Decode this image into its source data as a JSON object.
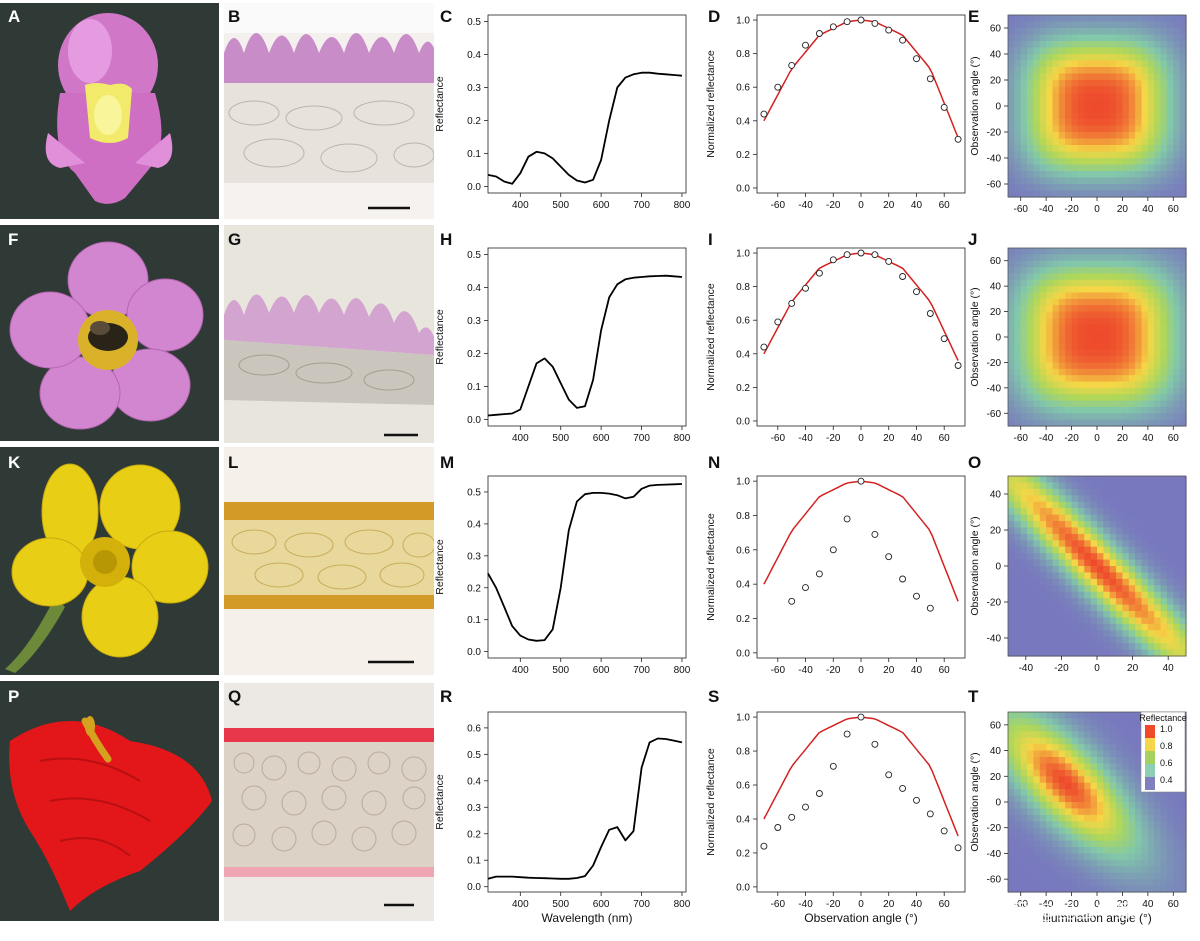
{
  "figure": {
    "row_letters": [
      [
        "A",
        "B",
        "C",
        "D",
        "E"
      ],
      [
        "F",
        "G",
        "H",
        "I",
        "J"
      ],
      [
        "K",
        "L",
        "M",
        "N",
        "O"
      ],
      [
        "P",
        "Q",
        "R",
        "S",
        "T"
      ]
    ],
    "watermark": "知乎 @昆虫学家",
    "colors": {
      "photo_background": "#2f3a36",
      "fit_curve": "#d42020",
      "spectrum_line": "#000000",
      "heat_low": "#8080c0",
      "heat_mid": "#a8d060",
      "heat_high": "#ef5030"
    },
    "icons": {
      "A": "snapdragon-flower-photo",
      "F": "cosmos-flower-with-bee-photo",
      "K": "buttercup-flower-photo",
      "P": "anthurium-spathe-photo",
      "B": "epidermis-cross-section-micrograph",
      "G": "epidermis-cross-section-micrograph",
      "L": "petal-cross-section-micrograph",
      "Q": "spathe-cross-section-micrograph"
    }
  },
  "chart_data": [
    {
      "panel": "C",
      "type": "line",
      "xlabel": "",
      "ylabel": "Reflectance",
      "xlim": [
        320,
        810
      ],
      "ylim": [
        -0.02,
        0.52
      ],
      "xticks": [
        400,
        500,
        600,
        700,
        800
      ],
      "yticks": [
        0.0,
        0.1,
        0.2,
        0.3,
        0.4,
        0.5
      ],
      "x": [
        320,
        340,
        360,
        380,
        400,
        420,
        440,
        460,
        480,
        500,
        520,
        540,
        560,
        580,
        600,
        620,
        640,
        660,
        680,
        700,
        720,
        740,
        760,
        780,
        800
      ],
      "y": [
        0.035,
        0.03,
        0.015,
        0.008,
        0.04,
        0.09,
        0.105,
        0.1,
        0.085,
        0.06,
        0.035,
        0.018,
        0.012,
        0.02,
        0.08,
        0.2,
        0.3,
        0.33,
        0.34,
        0.345,
        0.345,
        0.342,
        0.34,
        0.338,
        0.336
      ]
    },
    {
      "panel": "D",
      "type": "scatter",
      "xlabel": "",
      "ylabel": "Normalized reflectance",
      "xlim": [
        -75,
        75
      ],
      "ylim": [
        -0.03,
        1.03
      ],
      "xticks": [
        -60,
        -40,
        -20,
        0,
        20,
        40,
        60
      ],
      "yticks": [
        0.0,
        0.2,
        0.4,
        0.6,
        0.8,
        1.0
      ],
      "x": [
        -70,
        -60,
        -50,
        -40,
        -30,
        -20,
        -10,
        0,
        10,
        20,
        30,
        40,
        50,
        60,
        70
      ],
      "y": [
        0.44,
        0.6,
        0.73,
        0.85,
        0.92,
        0.96,
        0.99,
        1.0,
        0.98,
        0.94,
        0.88,
        0.77,
        0.65,
        0.48,
        0.29
      ],
      "fit": {
        "x": [
          -70,
          -50,
          -30,
          -10,
          0,
          10,
          30,
          50,
          70
        ],
        "y": [
          0.4,
          0.71,
          0.91,
          0.99,
          1.0,
          0.99,
          0.91,
          0.71,
          0.3
        ]
      }
    },
    {
      "panel": "E",
      "type": "heatmap",
      "xlabel": "",
      "ylabel": "Observation angle (°)",
      "xlim": [
        -70,
        70
      ],
      "ylim": [
        -70,
        70
      ],
      "xticks": [
        -60,
        -40,
        -20,
        0,
        20,
        40,
        60
      ],
      "yticks": [
        -60,
        -40,
        -20,
        0,
        20,
        40,
        60
      ],
      "pattern": "centered",
      "spread_x": 55,
      "spread_y": 50
    },
    {
      "panel": "H",
      "type": "line",
      "xlabel": "",
      "ylabel": "Reflectance",
      "xlim": [
        320,
        810
      ],
      "ylim": [
        -0.02,
        0.52
      ],
      "xticks": [
        400,
        500,
        600,
        700,
        800
      ],
      "yticks": [
        0.0,
        0.1,
        0.2,
        0.3,
        0.4,
        0.5
      ],
      "x": [
        320,
        340,
        360,
        380,
        400,
        420,
        440,
        460,
        480,
        500,
        520,
        540,
        560,
        580,
        600,
        620,
        640,
        660,
        680,
        700,
        720,
        740,
        760,
        780,
        800
      ],
      "y": [
        0.012,
        0.014,
        0.016,
        0.018,
        0.03,
        0.1,
        0.17,
        0.185,
        0.16,
        0.11,
        0.06,
        0.035,
        0.04,
        0.12,
        0.27,
        0.37,
        0.41,
        0.425,
        0.43,
        0.432,
        0.434,
        0.435,
        0.436,
        0.434,
        0.432
      ]
    },
    {
      "panel": "I",
      "type": "scatter",
      "xlabel": "",
      "ylabel": "Normalized reflectance",
      "xlim": [
        -75,
        75
      ],
      "ylim": [
        -0.03,
        1.03
      ],
      "xticks": [
        -60,
        -40,
        -20,
        0,
        20,
        40,
        60
      ],
      "yticks": [
        0.0,
        0.2,
        0.4,
        0.6,
        0.8,
        1.0
      ],
      "x": [
        -70,
        -60,
        -50,
        -40,
        -30,
        -20,
        -10,
        0,
        10,
        20,
        30,
        40,
        50,
        60,
        70
      ],
      "y": [
        0.44,
        0.59,
        0.7,
        0.79,
        0.88,
        0.96,
        0.99,
        1.0,
        0.99,
        0.95,
        0.86,
        0.77,
        0.64,
        0.49,
        0.33
      ],
      "fit": {
        "x": [
          -70,
          -50,
          -30,
          -10,
          0,
          10,
          30,
          50,
          70
        ],
        "y": [
          0.4,
          0.71,
          0.91,
          0.99,
          1.0,
          0.99,
          0.91,
          0.71,
          0.36
        ]
      }
    },
    {
      "panel": "J",
      "type": "heatmap",
      "xlabel": "",
      "ylabel": "Observation angle (°)",
      "xlim": [
        -70,
        70
      ],
      "ylim": [
        -70,
        70
      ],
      "xticks": [
        -60,
        -40,
        -20,
        0,
        20,
        40,
        60
      ],
      "yticks": [
        -60,
        -40,
        -20,
        0,
        20,
        40,
        60
      ],
      "pattern": "centered",
      "spread_x": 60,
      "spread_y": 55
    },
    {
      "panel": "M",
      "type": "line",
      "xlabel": "",
      "ylabel": "Reflectance",
      "xlim": [
        320,
        810
      ],
      "ylim": [
        -0.02,
        0.55
      ],
      "xticks": [
        400,
        500,
        600,
        700,
        800
      ],
      "yticks": [
        0.0,
        0.1,
        0.2,
        0.3,
        0.4,
        0.5
      ],
      "x": [
        320,
        340,
        360,
        380,
        400,
        420,
        440,
        460,
        480,
        500,
        520,
        540,
        560,
        580,
        600,
        620,
        640,
        660,
        680,
        700,
        720,
        740,
        760,
        780,
        800
      ],
      "y": [
        0.245,
        0.2,
        0.14,
        0.08,
        0.05,
        0.038,
        0.034,
        0.036,
        0.07,
        0.2,
        0.38,
        0.47,
        0.493,
        0.497,
        0.497,
        0.495,
        0.49,
        0.48,
        0.485,
        0.51,
        0.52,
        0.522,
        0.523,
        0.524,
        0.525
      ]
    },
    {
      "panel": "N",
      "type": "scatter",
      "xlabel": "",
      "ylabel": "Normalized reflectance",
      "xlim": [
        -75,
        75
      ],
      "ylim": [
        -0.03,
        1.03
      ],
      "xticks": [
        -60,
        -40,
        -20,
        0,
        20,
        40,
        60
      ],
      "yticks": [
        0.0,
        0.2,
        0.4,
        0.6,
        0.8,
        1.0
      ],
      "x": [
        -50,
        -40,
        -30,
        -20,
        -10,
        0,
        10,
        20,
        30,
        40,
        50
      ],
      "y": [
        0.3,
        0.38,
        0.46,
        0.6,
        0.78,
        1.0,
        0.69,
        0.56,
        0.43,
        0.33,
        0.26
      ],
      "fit": {
        "x": [
          -70,
          -50,
          -30,
          -10,
          0,
          10,
          30,
          50,
          70
        ],
        "y": [
          0.4,
          0.71,
          0.91,
          0.99,
          1.0,
          0.99,
          0.91,
          0.71,
          0.3
        ]
      }
    },
    {
      "panel": "O",
      "type": "heatmap",
      "xlabel": "",
      "ylabel": "Observation angle (°)",
      "xlim": [
        -50,
        50
      ],
      "ylim": [
        -50,
        50
      ],
      "xticks": [
        -40,
        -20,
        0,
        20,
        40
      ],
      "yticks": [
        -40,
        -20,
        0,
        20,
        40
      ],
      "pattern": "diagonal",
      "spread_x": 10,
      "spread_y": 30
    },
    {
      "panel": "R",
      "type": "line",
      "xlabel": "Wavelength (nm)",
      "ylabel": "Reflectance",
      "xlim": [
        320,
        810
      ],
      "ylim": [
        -0.02,
        0.66
      ],
      "xticks": [
        400,
        500,
        600,
        700,
        800
      ],
      "yticks": [
        0.0,
        0.1,
        0.2,
        0.3,
        0.4,
        0.5,
        0.6
      ],
      "x": [
        320,
        340,
        360,
        380,
        400,
        420,
        440,
        460,
        480,
        500,
        520,
        540,
        560,
        580,
        600,
        620,
        640,
        660,
        680,
        700,
        720,
        740,
        760,
        780,
        800
      ],
      "y": [
        0.03,
        0.038,
        0.038,
        0.038,
        0.036,
        0.034,
        0.033,
        0.032,
        0.031,
        0.03,
        0.03,
        0.033,
        0.04,
        0.08,
        0.15,
        0.215,
        0.225,
        0.175,
        0.21,
        0.45,
        0.545,
        0.56,
        0.558,
        0.552,
        0.545
      ]
    },
    {
      "panel": "S",
      "type": "scatter",
      "xlabel": "Observation angle (°)",
      "ylabel": "Normalized reflectance",
      "xlim": [
        -75,
        75
      ],
      "ylim": [
        -0.03,
        1.03
      ],
      "xticks": [
        -60,
        -40,
        -20,
        0,
        20,
        40,
        60
      ],
      "yticks": [
        0.0,
        0.2,
        0.4,
        0.6,
        0.8,
        1.0
      ],
      "x": [
        -70,
        -60,
        -50,
        -40,
        -30,
        -20,
        -10,
        0,
        10,
        20,
        30,
        40,
        50,
        60,
        70
      ],
      "y": [
        0.24,
        0.35,
        0.41,
        0.47,
        0.55,
        0.71,
        0.9,
        1.0,
        0.84,
        0.66,
        0.58,
        0.51,
        0.43,
        0.33,
        0.23
      ],
      "fit": {
        "x": [
          -70,
          -50,
          -30,
          -10,
          0,
          10,
          30,
          50,
          70
        ],
        "y": [
          0.4,
          0.71,
          0.91,
          0.99,
          1.0,
          0.99,
          0.91,
          0.71,
          0.3
        ]
      }
    },
    {
      "panel": "T",
      "type": "heatmap",
      "xlabel": "Illumination angle (°)",
      "ylabel": "Observation angle (°)",
      "xlim": [
        -70,
        70
      ],
      "ylim": [
        -70,
        70
      ],
      "xticks": [
        -60,
        -40,
        -20,
        0,
        20,
        40,
        60
      ],
      "yticks": [
        -60,
        -40,
        -20,
        0,
        20,
        40,
        60
      ],
      "pattern": "tilted",
      "spread_x": 20,
      "spread_y": 35,
      "legend": {
        "title": "Reflectance",
        "ticks": [
          "1.0",
          "0.8",
          "0.6",
          "0.4"
        ],
        "placement": "top-right"
      }
    }
  ]
}
